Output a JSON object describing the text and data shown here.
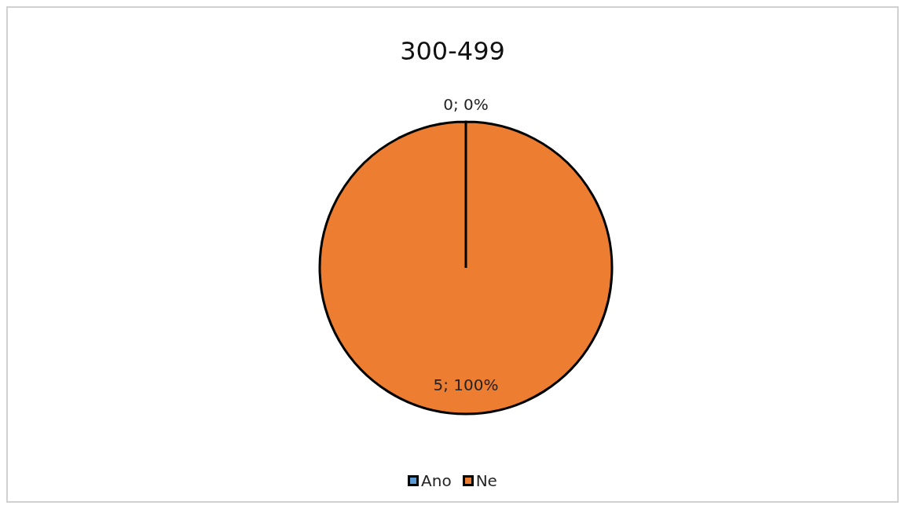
{
  "chart_data": {
    "type": "pie",
    "title": "300-499",
    "categories": [
      "Ano",
      "Ne"
    ],
    "values": [
      0,
      5
    ],
    "colors": [
      "#5b9bd5",
      "#ed7d31"
    ],
    "value_labels": [
      "0; 0%",
      "5; 100%"
    ],
    "legend": "bottom"
  }
}
